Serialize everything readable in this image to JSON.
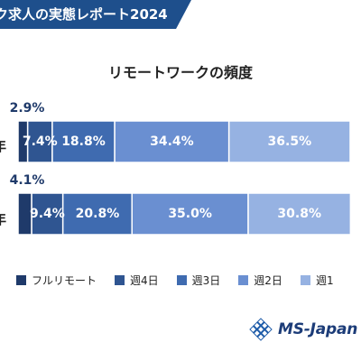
{
  "header": {
    "banner_text": "ク求人の実態レポート2024"
  },
  "logo": {
    "text": "MS-Japan"
  },
  "colors": {
    "banner": "#1e4f8c",
    "series": [
      "#1f3a6a",
      "#2f5591",
      "#3f6bb0",
      "#6a8fd1",
      "#96b2e2"
    ]
  },
  "chart_data": {
    "type": "bar",
    "orientation": "horizontal",
    "stacked": true,
    "title": "リモートワークの頻度",
    "categories": [
      "年",
      "年"
    ],
    "series": [
      {
        "name": "フルリモート",
        "values": [
          2.9,
          4.1
        ]
      },
      {
        "name": "週4日",
        "values": [
          7.4,
          9.4
        ]
      },
      {
        "name": "週3日",
        "values": [
          18.8,
          20.8
        ]
      },
      {
        "name": "週2日",
        "values": [
          34.4,
          35.0
        ]
      },
      {
        "name": "週1",
        "values": [
          36.5,
          30.8
        ]
      }
    ],
    "data_labels": [
      [
        "2.9%",
        "7.4%",
        "18.8%",
        "34.4%",
        "36.5%"
      ],
      [
        "4.1%",
        "9.4%",
        "20.8%",
        "35.0%",
        "30.8%"
      ]
    ],
    "legend_position": "bottom",
    "grid": false
  }
}
